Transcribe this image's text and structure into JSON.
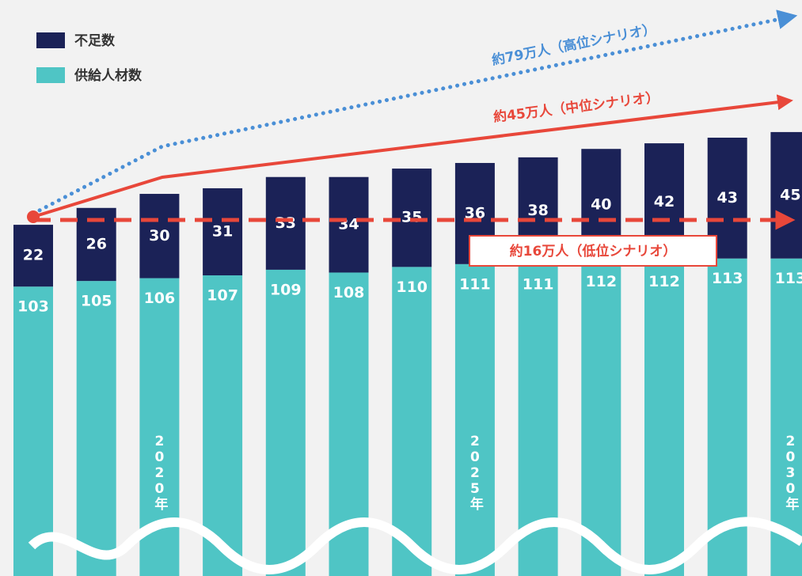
{
  "chart_data": {
    "type": "stacked_bar",
    "categories": [
      null,
      null,
      "2020年",
      null,
      null,
      null,
      null,
      "2025年",
      null,
      null,
      null,
      null,
      "2030年"
    ],
    "series": [
      {
        "name": "不足数",
        "color": "#1b2257",
        "values": [
          22,
          26,
          30,
          31,
          33,
          34,
          35,
          36,
          38,
          40,
          42,
          43,
          45
        ]
      },
      {
        "name": "供給人材数",
        "color": "#4fc5c5",
        "values": [
          103,
          105,
          106,
          107,
          109,
          108,
          110,
          111,
          111,
          112,
          112,
          113,
          113
        ]
      }
    ],
    "ylim": [
      0,
      205
    ],
    "annotations": [
      "約79万人（高位シナリオ）",
      "約45万人（中位シナリオ）",
      "約16万人（低位シナリオ）"
    ]
  }
}
